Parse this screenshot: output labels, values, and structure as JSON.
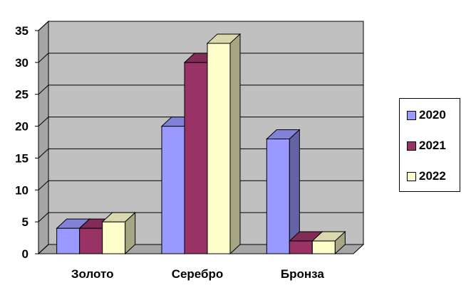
{
  "chart_data": {
    "type": "bar",
    "categories": [
      "Золото",
      "Серебро",
      "Бронза"
    ],
    "series": [
      {
        "name": "2020",
        "values": [
          4,
          20,
          18
        ],
        "color": "#9999ff"
      },
      {
        "name": "2021",
        "values": [
          4,
          30,
          2
        ],
        "color": "#993366"
      },
      {
        "name": "2022",
        "values": [
          5,
          33,
          2
        ],
        "color": "#ffffcc"
      }
    ],
    "y_ticks": [
      "0",
      "5",
      "10",
      "15",
      "20",
      "25",
      "30",
      "35"
    ],
    "ylim": [
      0,
      35
    ],
    "grid": true,
    "style": "3d-clustered-column",
    "background": "#c0c0c0",
    "legend_position": "right"
  }
}
